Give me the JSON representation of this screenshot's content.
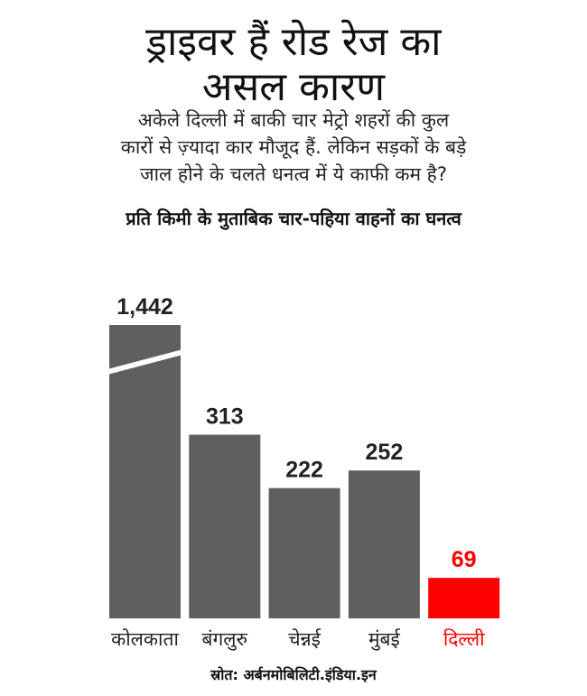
{
  "title_lines": [
    "ड्राइवर हैं रोड रेज का",
    "असल कारण"
  ],
  "subtitle_lines": [
    "अकेले दिल्ली में बाकी चार मेट्रो शहरों की कुल",
    "कारों से ज़्यादा कार मौजूद हैं. लेकिन सड़कों के बड़े",
    "जाल होने के चलते धनत्व में ये काफी कम है?"
  ],
  "source": "स्रोत: अर्बनमोबिलिटी.इंडिया.इन",
  "chart_data": {
    "type": "bar",
    "title": "प्रति किमी के मुताबिक चार-पहिया वाहनों का घनत्व",
    "categories": [
      "कोलकाता",
      "बंगलुरु",
      "चेन्नई",
      "मुंबई",
      "दिल्ली"
    ],
    "values": [
      1442,
      313,
      222,
      252,
      69
    ],
    "value_labels": [
      "1,442",
      "313",
      "222",
      "252",
      "69"
    ],
    "broken_bar": "कोलकाता",
    "colors": [
      "#5f5f5f",
      "#5f5f5f",
      "#5f5f5f",
      "#5f5f5f",
      "#ff0000"
    ],
    "label_colors": [
      "#222222",
      "#222222",
      "#222222",
      "#222222",
      "#ff0000"
    ],
    "grid": false
  }
}
